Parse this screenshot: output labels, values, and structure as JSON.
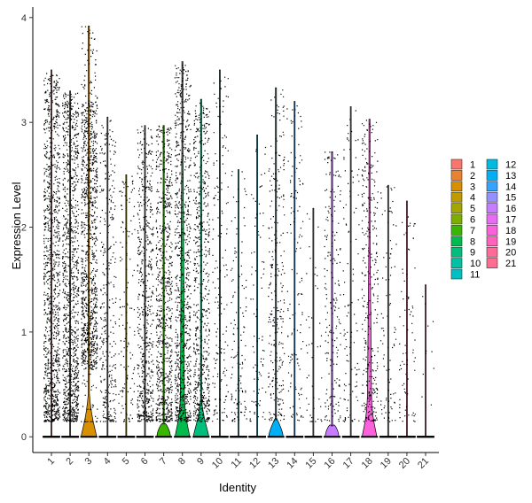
{
  "chart_data": {
    "type": "violin",
    "title": "",
    "xlabel": "Identity",
    "ylabel": "Expression Level",
    "ylim": [
      -0.15,
      4.1
    ],
    "yticks": [
      0,
      1,
      2,
      3,
      4
    ],
    "categories": [
      "1",
      "2",
      "3",
      "4",
      "5",
      "6",
      "7",
      "8",
      "9",
      "10",
      "11",
      "12",
      "13",
      "14",
      "15",
      "16",
      "17",
      "18",
      "19",
      "20",
      "21"
    ],
    "colors": [
      "#F8766D",
      "#EA8331",
      "#D89000",
      "#C09B00",
      "#A3A500",
      "#7CAE00",
      "#39B600",
      "#00BB4E",
      "#00BF7D",
      "#00C1A3",
      "#00BFC4",
      "#00BAE0",
      "#00B0F6",
      "#35A2FF",
      "#9590FF",
      "#C77CFF",
      "#E76BF3",
      "#FA62DB",
      "#FF62BC",
      "#FF6A98",
      "#FF6C91"
    ],
    "series": [
      {
        "name": "1",
        "max": 3.5,
        "point_density": 1.0,
        "expr_frac": 0.85,
        "violin_height": 0.0,
        "violin_width": 0.0
      },
      {
        "name": "2",
        "max": 3.3,
        "point_density": 0.95,
        "expr_frac": 0.8,
        "violin_height": 0.0,
        "violin_width": 0.0
      },
      {
        "name": "3",
        "max": 3.92,
        "point_density": 1.0,
        "expr_frac": 0.95,
        "violin_height": 0.42,
        "violin_width": 0.9
      },
      {
        "name": "4",
        "max": 3.05,
        "point_density": 0.3,
        "expr_frac": 0.3,
        "violin_height": 0.0,
        "violin_width": 0.0
      },
      {
        "name": "5",
        "max": 2.5,
        "point_density": 0.12,
        "expr_frac": 0.15,
        "violin_height": 0.0,
        "violin_width": 0.0
      },
      {
        "name": "6",
        "max": 2.97,
        "point_density": 0.55,
        "expr_frac": 0.5,
        "violin_height": 0.0,
        "violin_width": 0.0
      },
      {
        "name": "7",
        "max": 2.97,
        "point_density": 0.7,
        "expr_frac": 0.6,
        "violin_height": 0.12,
        "violin_width": 0.8
      },
      {
        "name": "8",
        "max": 3.58,
        "point_density": 0.75,
        "expr_frac": 0.75,
        "violin_height": 2.8,
        "violin_width": 0.85
      },
      {
        "name": "9",
        "max": 3.22,
        "point_density": 0.6,
        "expr_frac": 0.55,
        "violin_height": 0.35,
        "violin_width": 0.9
      },
      {
        "name": "10",
        "max": 3.5,
        "point_density": 0.15,
        "expr_frac": 0.15,
        "violin_height": 0.0,
        "violin_width": 0.0
      },
      {
        "name": "11",
        "max": 2.55,
        "point_density": 0.12,
        "expr_frac": 0.12,
        "violin_height": 0.0,
        "violin_width": 0.0
      },
      {
        "name": "12",
        "max": 2.88,
        "point_density": 0.08,
        "expr_frac": 0.08,
        "violin_height": 0.0,
        "violin_width": 0.0
      },
      {
        "name": "13",
        "max": 3.33,
        "point_density": 0.25,
        "expr_frac": 0.22,
        "violin_height": 0.18,
        "violin_width": 0.85
      },
      {
        "name": "14",
        "max": 3.2,
        "point_density": 0.12,
        "expr_frac": 0.12,
        "violin_height": 0.0,
        "violin_width": 0.0
      },
      {
        "name": "15",
        "max": 2.18,
        "point_density": 0.04,
        "expr_frac": 0.05,
        "violin_height": 0.0,
        "violin_width": 0.0
      },
      {
        "name": "16",
        "max": 2.72,
        "point_density": 0.18,
        "expr_frac": 0.15,
        "violin_height": 0.1,
        "violin_width": 0.8
      },
      {
        "name": "17",
        "max": 3.15,
        "point_density": 0.1,
        "expr_frac": 0.1,
        "violin_height": 0.0,
        "violin_width": 0.0
      },
      {
        "name": "18",
        "max": 3.03,
        "point_density": 0.3,
        "expr_frac": 0.25,
        "violin_height": 1.9,
        "violin_width": 0.85
      },
      {
        "name": "19",
        "max": 2.4,
        "point_density": 0.08,
        "expr_frac": 0.08,
        "violin_height": 0.0,
        "violin_width": 0.0
      },
      {
        "name": "20",
        "max": 2.25,
        "point_density": 0.07,
        "expr_frac": 0.07,
        "violin_height": 0.0,
        "violin_width": 0.0
      },
      {
        "name": "21",
        "max": 1.45,
        "point_density": 0.01,
        "expr_frac": 0.02,
        "violin_height": 0.0,
        "violin_width": 0.0
      }
    ],
    "legend": {
      "placement": "right",
      "columns": 2,
      "entries": [
        "1",
        "2",
        "3",
        "4",
        "5",
        "6",
        "7",
        "8",
        "9",
        "10",
        "11",
        "12",
        "13",
        "14",
        "15",
        "16",
        "17",
        "18",
        "19",
        "20",
        "21"
      ]
    },
    "grid": false
  }
}
